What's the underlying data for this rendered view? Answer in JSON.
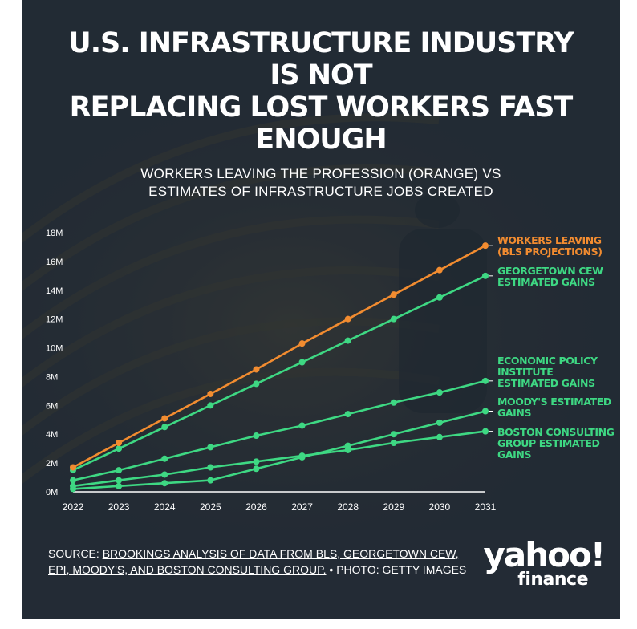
{
  "title_lines": [
    "U.S. INFRASTRUCTURE INDUSTRY",
    "IS NOT",
    "REPLACING LOST WORKERS FAST",
    "ENOUGH"
  ],
  "subtitle_lines": [
    "WORKERS LEAVING THE PROFESSION (ORANGE) VS",
    "ESTIMATES OF INFRASTRUCTURE JOBS CREATED"
  ],
  "source": {
    "prefix": "SOURCE: ",
    "link_text": "BROOKINGS ANALYSIS OF DATA FROM BLS, GEORGETOWN CEW, EPI, MOODY'S, AND BOSTON CONSULTING GROUP.",
    "suffix": " • PHOTO: GETTY IMAGES"
  },
  "logo": {
    "top": "yahoo!",
    "bottom": "finance"
  },
  "colors": {
    "background": "#232b35",
    "orange": "#f28c30",
    "green": "#3ed883",
    "text": "#ffffff"
  },
  "chart_data": {
    "type": "line",
    "title": "U.S. INFRASTRUCTURE INDUSTRY IS NOT REPLACING LOST WORKERS FAST ENOUGH",
    "subtitle": "WORKERS LEAVING THE PROFESSION (ORANGE) VS ESTIMATES OF INFRASTRUCTURE JOBS CREATED",
    "x": [
      2022,
      2023,
      2024,
      2025,
      2026,
      2027,
      2028,
      2029,
      2030,
      2031
    ],
    "x_tick_labels": [
      "2022",
      "2023",
      "2024",
      "2025",
      "2026",
      "2027",
      "2028",
      "2029",
      "2030",
      "2031"
    ],
    "ylim": [
      0,
      18
    ],
    "y_ticks": [
      0,
      2,
      4,
      6,
      8,
      10,
      12,
      14,
      16,
      18
    ],
    "y_tick_labels": [
      "0M",
      "2M",
      "4M",
      "6M",
      "8M",
      "10M",
      "12M",
      "14M",
      "16M",
      "18M"
    ],
    "grid": false,
    "legend": "right, direct labels",
    "series": [
      {
        "name": "WORKERS LEAVING (BLS PROJECTIONS)",
        "label_lines": [
          "WORKERS LEAVING",
          "(BLS PROJECTIONS)"
        ],
        "color": "#f28c30",
        "values": [
          1.7,
          3.4,
          5.1,
          6.8,
          8.5,
          10.3,
          12.0,
          13.7,
          15.4,
          17.1
        ]
      },
      {
        "name": "GEORGETOWN CEW ESTIMATED GAINS",
        "label_lines": [
          "GEORGETOWN CEW",
          "ESTIMATED GAINS"
        ],
        "color": "#3ed883",
        "values": [
          1.5,
          3.0,
          4.5,
          6.0,
          7.5,
          9.0,
          10.5,
          12.0,
          13.5,
          15.0
        ]
      },
      {
        "name": "ECONOMIC POLICY INSTITUTE ESTIMATED GAINS",
        "label_lines": [
          "ECONOMIC POLICY",
          "INSTITUTE",
          "ESTIMATED GAINS"
        ],
        "color": "#3ed883",
        "values": [
          0.8,
          1.5,
          2.3,
          3.1,
          3.9,
          4.6,
          5.4,
          6.2,
          6.9,
          7.7
        ]
      },
      {
        "name": "MOODY'S ESTIMATED GAINS",
        "label_lines": [
          "MOODY'S ESTIMATED",
          "GAINS"
        ],
        "color": "#3ed883",
        "values": [
          0.2,
          0.4,
          0.6,
          0.8,
          1.6,
          2.4,
          3.2,
          4.0,
          4.8,
          5.6
        ]
      },
      {
        "name": "BOSTON CONSULTING GROUP ESTIMATED GAINS",
        "label_lines": [
          "BOSTON CONSULTING",
          "GROUP ESTIMATED",
          "GAINS"
        ],
        "color": "#3ed883",
        "values": [
          0.4,
          0.8,
          1.2,
          1.7,
          2.1,
          2.5,
          2.9,
          3.4,
          3.8,
          4.2
        ]
      }
    ]
  }
}
